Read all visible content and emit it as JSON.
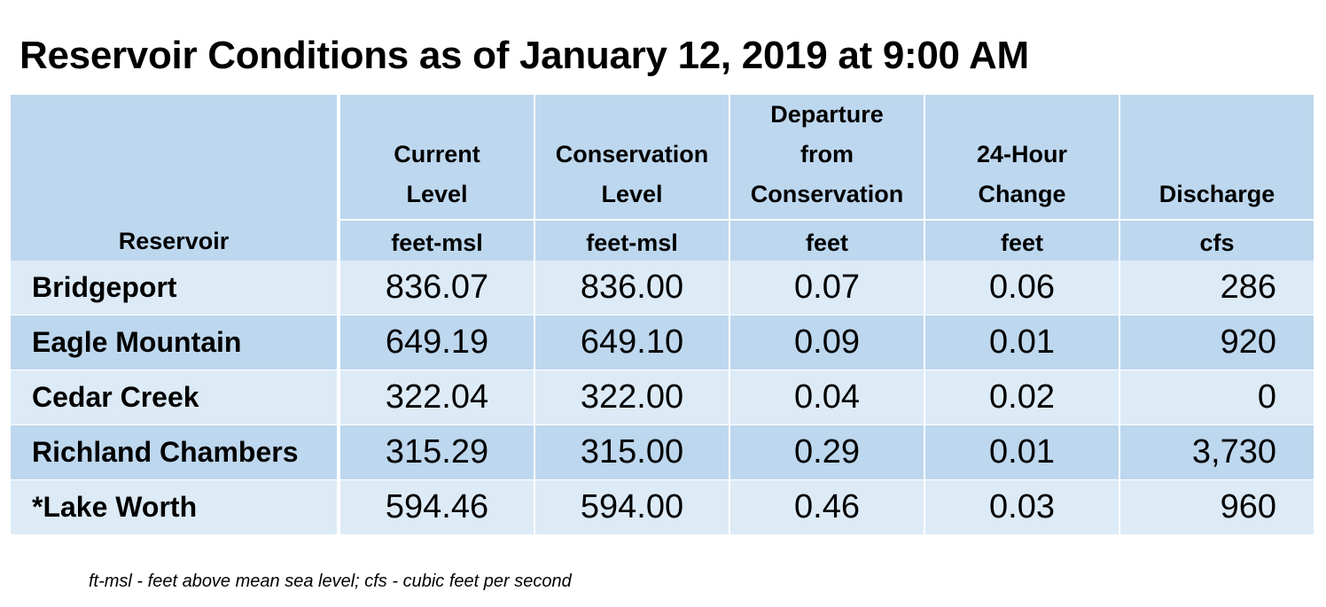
{
  "title": "Reservoir Conditions as of January 12, 2019 at 9:00 AM",
  "colors": {
    "header_bg": "#bdd7ee",
    "row_light": "#ddebf7",
    "row_dark": "#bdd7ee"
  },
  "chart_data": {
    "type": "table",
    "title": "Reservoir Conditions as of January 12, 2019 at 9:00 AM",
    "columns": [
      {
        "label_lines": [
          "",
          "",
          "Reservoir"
        ],
        "unit": "Reservoir"
      },
      {
        "label_lines": [
          "",
          "Current",
          "Level"
        ],
        "unit": "feet-msl"
      },
      {
        "label_lines": [
          "",
          "Conservation",
          "Level"
        ],
        "unit": "feet-msl"
      },
      {
        "label_lines": [
          "Departure",
          "from",
          "Conservation"
        ],
        "unit": "feet"
      },
      {
        "label_lines": [
          "",
          "24-Hour",
          "Change"
        ],
        "unit": "feet"
      },
      {
        "label_lines": [
          "",
          "",
          "Discharge"
        ],
        "unit": "cfs"
      }
    ],
    "rows": [
      {
        "reservoir": "Bridgeport",
        "current": "836.07",
        "conservation": "836.00",
        "departure": "0.07",
        "change": "0.06",
        "discharge": "286"
      },
      {
        "reservoir": "Eagle Mountain",
        "current": "649.19",
        "conservation": "649.10",
        "departure": "0.09",
        "change": "0.01",
        "discharge": "920"
      },
      {
        "reservoir": "Cedar Creek",
        "current": "322.04",
        "conservation": "322.00",
        "departure": "0.04",
        "change": "0.02",
        "discharge": "0"
      },
      {
        "reservoir": "Richland Chambers",
        "current": "315.29",
        "conservation": "315.00",
        "departure": "0.29",
        "change": "0.01",
        "discharge": "3,730"
      },
      {
        "reservoir": "*Lake Worth",
        "current": "594.46",
        "conservation": "594.00",
        "departure": "0.46",
        "change": "0.03",
        "discharge": "960"
      }
    ]
  },
  "footnote": "ft-msl - feet above mean sea level; cfs - cubic feet per second"
}
